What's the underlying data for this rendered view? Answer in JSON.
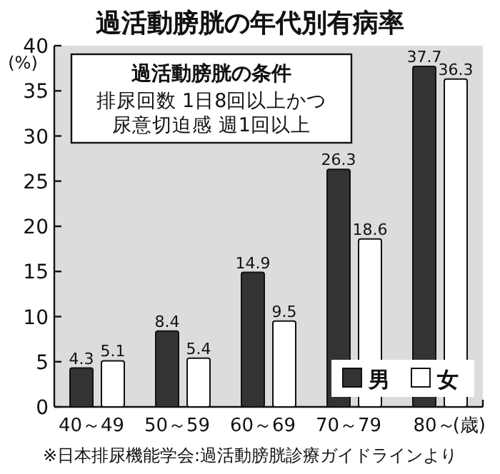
{
  "chart_data": {
    "type": "bar",
    "title": "過活動膀胱の年代別有病率",
    "ylabel": "(%)",
    "xlabel": "(歳)",
    "categories": [
      "40～49",
      "50～59",
      "60～69",
      "70～79",
      "80～"
    ],
    "series": [
      {
        "name": "男",
        "color": "#333333",
        "values": [
          4.3,
          8.4,
          14.9,
          26.3,
          37.7
        ]
      },
      {
        "name": "女",
        "color": "#ffffff",
        "values": [
          5.1,
          5.4,
          9.5,
          18.6,
          36.3
        ]
      }
    ],
    "ylim": [
      0,
      40
    ],
    "yticks": [
      0,
      5,
      10,
      15,
      20,
      25,
      30,
      35,
      40
    ],
    "data_labels": true,
    "legend": "bottom right",
    "annotations": [
      "過活動膀胱の条件",
      "排尿回数 1日8回以上かつ",
      "尿意切迫感 週1回以上",
      "※日本排尿機能学会:過活動膀胱診療ガイドラインより"
    ]
  }
}
